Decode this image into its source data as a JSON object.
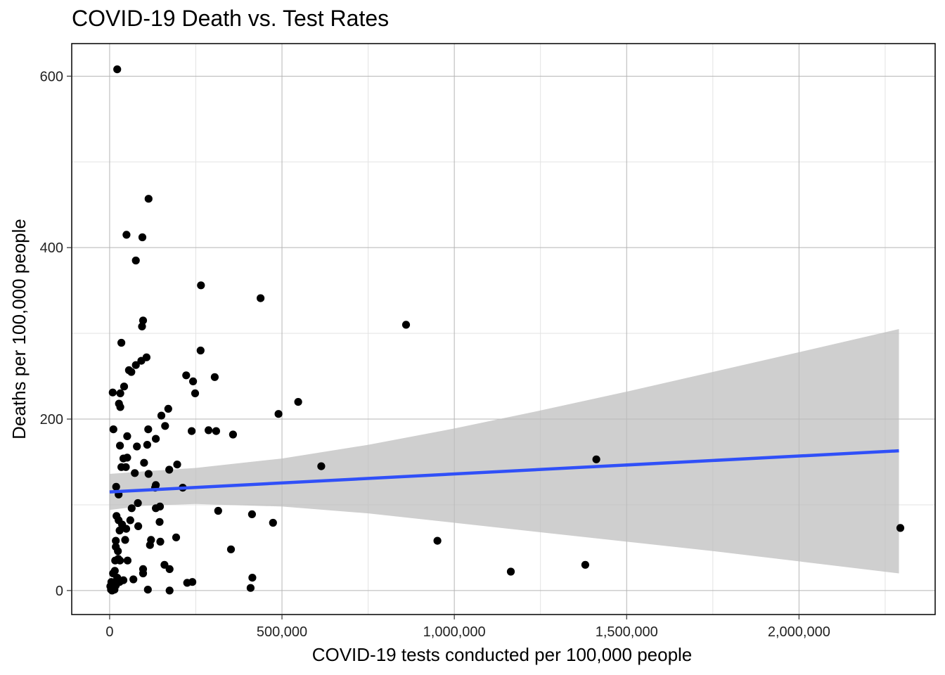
{
  "chart_data": {
    "type": "scatter",
    "title": "COVID-19 Death vs. Test Rates",
    "xlabel": "COVID-19 tests conducted per 100,000 people",
    "ylabel": "Deaths per 100,000 people",
    "xlim": [
      -110000,
      2395000
    ],
    "ylim": [
      -28,
      638
    ],
    "x_ticks": [
      0,
      500000,
      1000000,
      1500000,
      2000000
    ],
    "x_tick_labels": [
      "0",
      "500,000",
      "1,000,000",
      "1,500,000",
      "2,000,000"
    ],
    "y_ticks": [
      0,
      200,
      400,
      600
    ],
    "y_tick_labels": [
      "0",
      "200",
      "400",
      "600"
    ],
    "x_minor_ticks": [
      250000,
      750000,
      1250000,
      1750000,
      2250000
    ],
    "y_minor_ticks": [
      100,
      300,
      500
    ],
    "grid": true,
    "colors": {
      "points": "#000000",
      "trend_line": "#3050f8",
      "confidence_band": "#bdbdbd"
    },
    "trend_line": {
      "x": [
        0,
        2290000
      ],
      "y": [
        115,
        163
      ]
    },
    "confidence_band": {
      "x": [
        0,
        100000,
        250000,
        500000,
        750000,
        1000000,
        1250000,
        1500000,
        1750000,
        2000000,
        2290000
      ],
      "upper": [
        136,
        139,
        143,
        154,
        170,
        189,
        210,
        232,
        255,
        278,
        305
      ],
      "lower": [
        94,
        99,
        101,
        98,
        90,
        79,
        68,
        57,
        46,
        34,
        20
      ]
    },
    "points": [
      [
        22000,
        608
      ],
      [
        113000,
        457
      ],
      [
        49000,
        415
      ],
      [
        95000,
        412
      ],
      [
        76000,
        385
      ],
      [
        265000,
        356
      ],
      [
        438000,
        341
      ],
      [
        34000,
        289
      ],
      [
        97000,
        315
      ],
      [
        94000,
        308
      ],
      [
        860000,
        310
      ],
      [
        264000,
        280
      ],
      [
        107000,
        272
      ],
      [
        92000,
        268
      ],
      [
        76000,
        263
      ],
      [
        56000,
        257
      ],
      [
        63000,
        255
      ],
      [
        42000,
        238
      ],
      [
        222000,
        251
      ],
      [
        305000,
        249
      ],
      [
        242000,
        244
      ],
      [
        9000,
        231
      ],
      [
        31000,
        230
      ],
      [
        248000,
        230
      ],
      [
        27000,
        218
      ],
      [
        31000,
        214
      ],
      [
        170000,
        212
      ],
      [
        547000,
        220
      ],
      [
        490000,
        206
      ],
      [
        150000,
        204
      ],
      [
        11000,
        188
      ],
      [
        112000,
        188
      ],
      [
        161000,
        192
      ],
      [
        238000,
        186
      ],
      [
        287000,
        187
      ],
      [
        309000,
        186
      ],
      [
        358000,
        182
      ],
      [
        51000,
        180
      ],
      [
        134000,
        177
      ],
      [
        109000,
        170
      ],
      [
        30000,
        169
      ],
      [
        79000,
        168
      ],
      [
        40000,
        154
      ],
      [
        51000,
        155
      ],
      [
        100000,
        149
      ],
      [
        196000,
        147
      ],
      [
        173000,
        141
      ],
      [
        34000,
        144
      ],
      [
        47000,
        144
      ],
      [
        1412000,
        153
      ],
      [
        614000,
        145
      ],
      [
        73000,
        137
      ],
      [
        113000,
        136
      ],
      [
        134000,
        123
      ],
      [
        132000,
        120
      ],
      [
        19000,
        121
      ],
      [
        212000,
        120
      ],
      [
        26000,
        112
      ],
      [
        82000,
        102
      ],
      [
        146000,
        98
      ],
      [
        134000,
        96
      ],
      [
        64000,
        96
      ],
      [
        315000,
        93
      ],
      [
        20000,
        87
      ],
      [
        26000,
        82
      ],
      [
        60000,
        82
      ],
      [
        413000,
        89
      ],
      [
        474000,
        79
      ],
      [
        145000,
        80
      ],
      [
        83000,
        75
      ],
      [
        36000,
        77
      ],
      [
        48000,
        72
      ],
      [
        29000,
        70
      ],
      [
        2294000,
        73
      ],
      [
        18000,
        58
      ],
      [
        45000,
        59
      ],
      [
        120000,
        59
      ],
      [
        193000,
        62
      ],
      [
        147000,
        57
      ],
      [
        951000,
        58
      ],
      [
        117000,
        53
      ],
      [
        18000,
        51
      ],
      [
        24000,
        46
      ],
      [
        352000,
        48
      ],
      [
        16000,
        35
      ],
      [
        25000,
        37
      ],
      [
        30000,
        35
      ],
      [
        52000,
        35
      ],
      [
        10000,
        20
      ],
      [
        15000,
        23
      ],
      [
        97000,
        25
      ],
      [
        159000,
        30
      ],
      [
        174000,
        25
      ],
      [
        97000,
        20
      ],
      [
        1380000,
        30
      ],
      [
        1164000,
        22
      ],
      [
        22000,
        15
      ],
      [
        40000,
        12
      ],
      [
        29000,
        10
      ],
      [
        69000,
        13
      ],
      [
        225000,
        9
      ],
      [
        240000,
        10
      ],
      [
        414000,
        15
      ],
      [
        5000,
        10
      ],
      [
        2000,
        5
      ],
      [
        8000,
        3
      ],
      [
        12000,
        2
      ],
      [
        18000,
        6
      ],
      [
        4000,
        1
      ],
      [
        7000,
        0
      ],
      [
        14000,
        1
      ],
      [
        20000,
        8
      ],
      [
        111000,
        1
      ],
      [
        174000,
        0
      ],
      [
        409000,
        3
      ]
    ]
  }
}
